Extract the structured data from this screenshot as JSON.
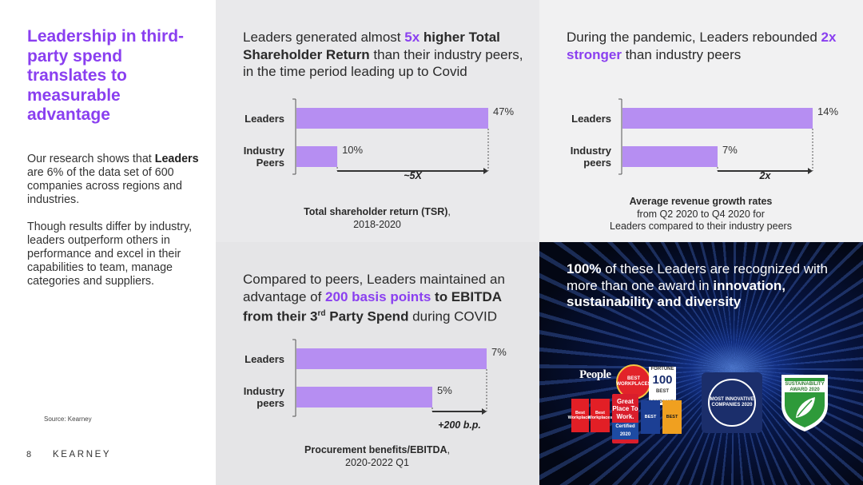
{
  "left": {
    "headline": "Leadership in third-party spend translates to measurable advantage",
    "intro_prefix": "Our research shows that ",
    "intro_bold": "Leaders",
    "intro_suffix": " are 6% of the data set of 600 companies across regions and industries.",
    "paragraph2": "Though results differ by industry, leaders outperform others in performance and excel in their capabilities to team, manage categories and suppliers.",
    "source": "Source: Kearney",
    "page_number": "8",
    "brand": "KEARNEY"
  },
  "panel_tsr": {
    "title_1": "Leaders generated almost ",
    "title_hl": "5x",
    "title_2": " higher Total Shareholder Return",
    "title_3": " than their industry peers, in the time period leading up to Covid",
    "caption_bold": "Total shareholder return (TSR)",
    "caption_rest": ",",
    "caption_line2": "2018-2020"
  },
  "panel_growth": {
    "title_1": "During the pandemic, Leaders rebounded ",
    "title_hl": "2x stronger",
    "title_2": " than industry peers",
    "caption_bold": "Average revenue growth rates",
    "caption_line2": "from Q2 2020 to Q4 2020 for",
    "caption_line3": "Leaders compared to their industry peers"
  },
  "panel_ebitda": {
    "title_1": "Compared to peers, Leaders maintained an advantage of ",
    "title_hl": "200 basis points",
    "title_2": " to EBITDA from their 3",
    "title_sup": "rd",
    "title_3": " Party Spend",
    "title_4": " during COVID",
    "caption_bold": "Procurement benefits/EBITDA",
    "caption_rest": ",",
    "caption_line2": "2020-2022 Q1"
  },
  "panel_awards": {
    "title_bold1": "100%",
    "title_1": " of these Leaders are recognized with more than one award in ",
    "title_bold2": "innovation, sustainability and diversity",
    "people": "People",
    "best_workplaces": "BEST WORKPLACES",
    "fortune_100": "100",
    "fortune_100_sub": "BEST COMPANIES",
    "fortune_label": "FORTUNE",
    "bw1": "Best Workplaces",
    "bw2": "Best Workplaces",
    "gptw": "Great Place To Work.",
    "gptw_cert": "Certified 2020",
    "ft1": "BEST",
    "ft2": "BEST",
    "most_innovative": "MOST INNOVATIVE COMPANIES 2020",
    "sustainability": "SUSTAINABILITY AWARD 2020",
    "accent": "#8a3ff0"
  },
  "chart_data": [
    {
      "type": "bar",
      "orientation": "horizontal",
      "categories": [
        "Leaders",
        "Industry Peers"
      ],
      "values": [
        47,
        10
      ],
      "value_labels": [
        "47%",
        "10%"
      ],
      "annotation": "~5X",
      "xlim": [
        0,
        47
      ],
      "title": "Total shareholder return (TSR), 2018-2020"
    },
    {
      "type": "bar",
      "orientation": "horizontal",
      "categories": [
        "Leaders",
        "Industry peers"
      ],
      "values": [
        14,
        7
      ],
      "value_labels": [
        "14%",
        "7%"
      ],
      "annotation": "2x",
      "xlim": [
        0,
        14
      ],
      "title": "Average revenue growth rates from Q2 2020 to Q4 2020 for Leaders compared to their industry peers"
    },
    {
      "type": "bar",
      "orientation": "horizontal",
      "categories": [
        "Leaders",
        "Industry peers"
      ],
      "values": [
        7,
        5
      ],
      "value_labels": [
        "7%",
        "5%"
      ],
      "annotation": "+200 b.p.",
      "xlim": [
        0,
        7
      ],
      "title": "Procurement benefits/EBITDA, 2020-2022 Q1"
    }
  ]
}
